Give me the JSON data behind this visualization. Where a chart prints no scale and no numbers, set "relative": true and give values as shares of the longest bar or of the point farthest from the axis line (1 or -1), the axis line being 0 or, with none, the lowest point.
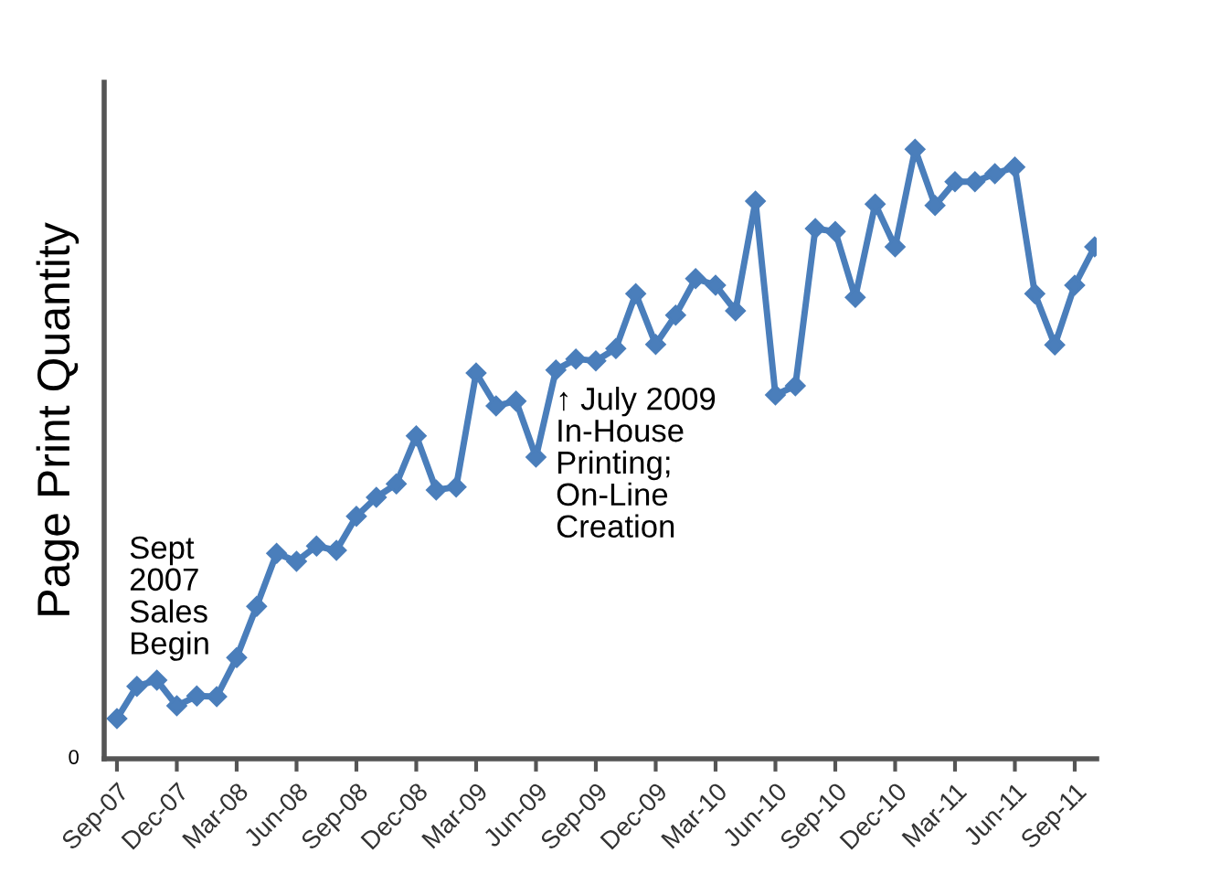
{
  "chart_data": {
    "type": "line",
    "ylabel": "Page Print Quantity",
    "relative": true,
    "categories": [
      "Sep-07",
      null,
      null,
      "Dec-07",
      null,
      null,
      "Mar-08",
      null,
      null,
      "Jun-08",
      null,
      null,
      "Sep-08",
      null,
      null,
      "Dec-08",
      null,
      null,
      "Mar-09",
      null,
      null,
      "Jun-09",
      null,
      null,
      "Sep-09",
      null,
      null,
      "Dec-09",
      null,
      null,
      "Mar-10",
      null,
      null,
      "Jun-10",
      null,
      null,
      "Sep-10",
      null,
      null,
      "Dec-10",
      null,
      null,
      "Mar-11",
      null,
      null,
      "Jun-11",
      null,
      null,
      "Sep-11",
      null
    ],
    "series": [
      {
        "color": "#4a7ebb",
        "values": [
          0.066,
          0.119,
          0.129,
          0.087,
          0.103,
          0.102,
          0.166,
          0.25,
          0.337,
          0.324,
          0.349,
          0.342,
          0.398,
          0.429,
          0.451,
          0.53,
          0.441,
          0.446,
          0.633,
          0.579,
          0.587,
          0.495,
          0.638,
          0.656,
          0.653,
          0.673,
          0.763,
          0.68,
          0.728,
          0.788,
          0.777,
          0.735,
          0.915,
          0.597,
          0.612,
          0.87,
          0.865,
          0.757,
          0.91,
          0.84,
          1,
          0.908,
          0.947,
          0.947,
          0.96,
          0.971,
          0.763,
          0.679,
          0.777,
          0.84
        ]
      }
    ],
    "marker": "diamond",
    "line_style": "solid",
    "grid": false,
    "legend": false,
    "annotations": [
      "0",
      "Sept\n2007\nSales\nBegin",
      "↑ July 2009\nIn-House\nPrinting;\nOn-Line\nCreation"
    ]
  }
}
